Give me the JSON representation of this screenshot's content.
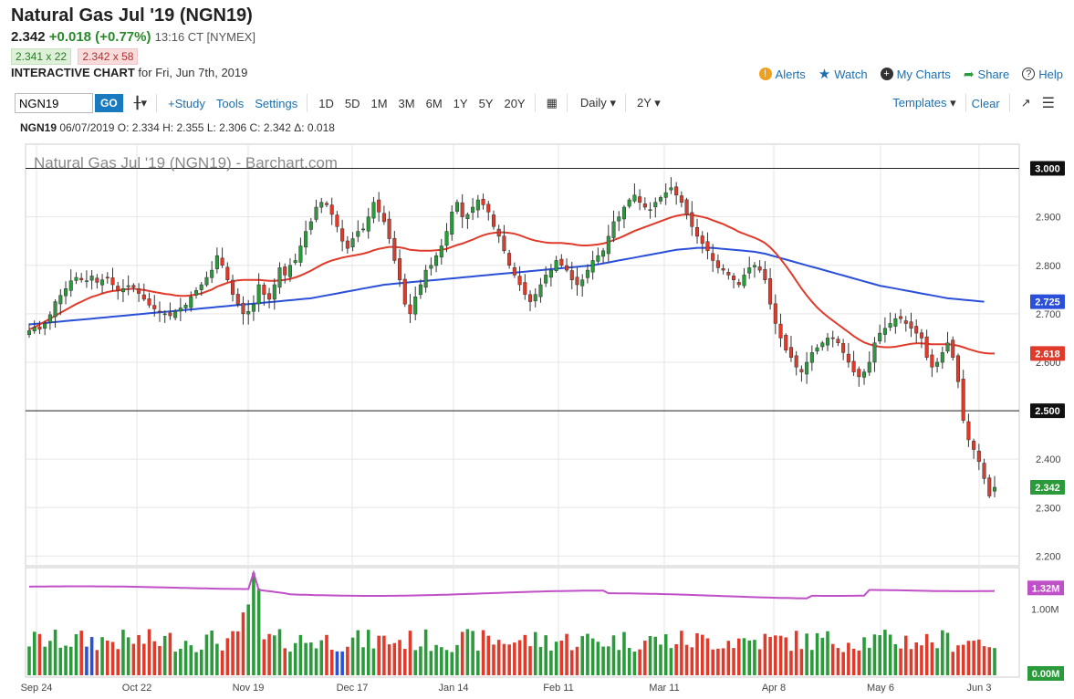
{
  "header": {
    "title": "Natural Gas Jul '19 (NGN19)",
    "last": "2.342",
    "change": "+0.018 (+0.77%)",
    "time": "13:16 CT [NYMEX]",
    "bid": "2.341 x 22",
    "ask": "2.342 x 58",
    "chart_label": "INTERACTIVE CHART",
    "chart_date": "for Fri, Jun 7th, 2019"
  },
  "links": {
    "alerts": "Alerts",
    "watch": "Watch",
    "my_charts": "My Charts",
    "share": "Share",
    "help": "Help"
  },
  "toolbar": {
    "symbol": "NGN19",
    "go": "GO",
    "study": "+Study",
    "tools": "Tools",
    "settings": "Settings",
    "ranges": [
      "1D",
      "5D",
      "1M",
      "3M",
      "6M",
      "1Y",
      "5Y",
      "20Y"
    ],
    "interval": "Daily",
    "period": "2Y",
    "templates": "Templates",
    "clear": "Clear"
  },
  "ohlc": {
    "symbol": "NGN19",
    "text": "06/07/2019 O: 2.334 H: 2.355 L: 2.306 C: 2.342 Δ: 0.018"
  },
  "chart_data": {
    "type": "candlestick",
    "title": "Natural Gas Jul '19 (NGN19) - Barchart.com",
    "x_ticks": [
      "Sep 24",
      "Oct 22",
      "Nov 19",
      "Dec 17",
      "Jan 14",
      "Feb 11",
      "Mar 11",
      "Apr 8",
      "May 6",
      "Jun 3"
    ],
    "y_ticks": [
      "2.200",
      "2.300",
      "2.400",
      "2.500",
      "2.600",
      "2.700",
      "2.800",
      "2.900",
      "3.000"
    ],
    "ylim": [
      2.18,
      3.05
    ],
    "horizontal_lines": [
      3.0,
      2.5
    ],
    "price_labels": [
      {
        "label": "3.000",
        "value": 3.0,
        "color": "#111111"
      },
      {
        "label": "2.725",
        "value": 2.725,
        "color": "#2a4fd8"
      },
      {
        "label": "2.618",
        "value": 2.618,
        "color": "#e03a2a"
      },
      {
        "label": "2.500",
        "value": 2.5,
        "color": "#111111"
      },
      {
        "label": "2.342",
        "value": 2.342,
        "color": "#2a9a3a"
      }
    ],
    "ma_fast_color": "#e03a2a",
    "ma_slow_color": "#2a4fd8",
    "up_color": "#2a9a3a",
    "down_color": "#e03a2a",
    "closes": [
      2.665,
      2.672,
      2.668,
      2.68,
      2.698,
      2.725,
      2.738,
      2.752,
      2.768,
      2.775,
      2.77,
      2.768,
      2.778,
      2.765,
      2.77,
      2.775,
      2.76,
      2.748,
      2.752,
      2.758,
      2.755,
      2.742,
      2.73,
      2.718,
      2.71,
      2.705,
      2.7,
      2.696,
      2.705,
      2.712,
      2.718,
      2.735,
      2.748,
      2.76,
      2.775,
      2.79,
      2.82,
      2.8,
      2.77,
      2.74,
      2.72,
      2.7,
      2.705,
      2.72,
      2.76,
      2.74,
      2.73,
      2.76,
      2.795,
      2.78,
      2.8,
      2.81,
      2.84,
      2.87,
      2.89,
      2.92,
      2.93,
      2.925,
      2.905,
      2.88,
      2.85,
      2.835,
      2.855,
      2.87,
      2.875,
      2.9,
      2.93,
      2.91,
      2.89,
      2.855,
      2.81,
      2.77,
      2.72,
      2.7,
      2.735,
      2.76,
      2.79,
      2.8,
      2.82,
      2.84,
      2.87,
      2.91,
      2.93,
      2.9,
      2.905,
      2.92,
      2.935,
      2.925,
      2.91,
      2.88,
      2.86,
      2.83,
      2.8,
      2.78,
      2.76,
      2.74,
      2.725,
      2.74,
      2.76,
      2.78,
      2.79,
      2.81,
      2.8,
      2.79,
      2.77,
      2.76,
      2.77,
      2.79,
      2.81,
      2.82,
      2.83,
      2.86,
      2.89,
      2.9,
      2.92,
      2.935,
      2.945,
      2.93,
      2.92,
      2.915,
      2.93,
      2.94,
      2.95,
      2.96,
      2.945,
      2.93,
      2.905,
      2.88,
      2.86,
      2.845,
      2.83,
      2.81,
      2.795,
      2.79,
      2.78,
      2.77,
      2.76,
      2.78,
      2.795,
      2.8,
      2.79,
      2.77,
      2.72,
      2.68,
      2.65,
      2.625,
      2.61,
      2.59,
      2.58,
      2.6,
      2.62,
      2.63,
      2.64,
      2.65,
      2.65,
      2.64,
      2.62,
      2.6,
      2.58,
      2.57,
      2.58,
      2.6,
      2.64,
      2.66,
      2.67,
      2.68,
      2.69,
      2.69,
      2.68,
      2.67,
      2.66,
      2.65,
      2.61,
      2.59,
      2.6,
      2.62,
      2.64,
      2.61,
      2.56,
      2.48,
      2.44,
      2.42,
      2.395,
      2.36,
      2.324,
      2.342
    ],
    "ma_fast": [
      2.668,
      2.672,
      2.678,
      2.684,
      2.69,
      2.696,
      2.702,
      2.708,
      2.714,
      2.72,
      2.725,
      2.73,
      2.735,
      2.738,
      2.742,
      2.745,
      2.747,
      2.748,
      2.75,
      2.751,
      2.752,
      2.75,
      2.749,
      2.747,
      2.745,
      2.743,
      2.741,
      2.74,
      2.738,
      2.737,
      2.737,
      2.738,
      2.74,
      2.742,
      2.746,
      2.75,
      2.756,
      2.76,
      2.764,
      2.767,
      2.769,
      2.77,
      2.77,
      2.77,
      2.77,
      2.769,
      2.768,
      2.768,
      2.769,
      2.77,
      2.772,
      2.775,
      2.779,
      2.784,
      2.789,
      2.795,
      2.801,
      2.806,
      2.81,
      2.813,
      2.816,
      2.818,
      2.82,
      2.822,
      2.824,
      2.827,
      2.831,
      2.834,
      2.836,
      2.838,
      2.838,
      2.837,
      2.835,
      2.832,
      2.831,
      2.83,
      2.83,
      2.83,
      2.831,
      2.832,
      2.834,
      2.838,
      2.842,
      2.845,
      2.849,
      2.853,
      2.858,
      2.862,
      2.865,
      2.867,
      2.868,
      2.868,
      2.867,
      2.865,
      2.862,
      2.858,
      2.854,
      2.851,
      2.849,
      2.847,
      2.846,
      2.846,
      2.846,
      2.845,
      2.844,
      2.842,
      2.841,
      2.841,
      2.842,
      2.843,
      2.845,
      2.848,
      2.852,
      2.856,
      2.861,
      2.866,
      2.871,
      2.875,
      2.879,
      2.883,
      2.887,
      2.891,
      2.895,
      2.899,
      2.902,
      2.904,
      2.905,
      2.904,
      2.902,
      2.9,
      2.897,
      2.893,
      2.889,
      2.885,
      2.88,
      2.875,
      2.869,
      2.865,
      2.861,
      2.857,
      2.852,
      2.846,
      2.837,
      2.826,
      2.813,
      2.799,
      2.784,
      2.768,
      2.752,
      2.738,
      2.725,
      2.713,
      2.703,
      2.694,
      2.686,
      2.678,
      2.67,
      2.662,
      2.654,
      2.647,
      2.641,
      2.637,
      2.634,
      2.632,
      2.631,
      2.631,
      2.632,
      2.634,
      2.636,
      2.638,
      2.639,
      2.639,
      2.638,
      2.637,
      2.637,
      2.637,
      2.637,
      2.636,
      2.634,
      2.631,
      2.627,
      2.624,
      2.621,
      2.619,
      2.618,
      2.618
    ],
    "ma_slow": [
      2.678,
      2.679,
      2.68,
      2.681,
      2.682,
      2.683,
      2.684,
      2.685,
      2.686,
      2.687,
      2.688,
      2.689,
      2.69,
      2.691,
      2.692,
      2.693,
      2.694,
      2.695,
      2.696,
      2.697,
      2.698,
      2.699,
      2.7,
      2.701,
      2.702,
      2.703,
      2.704,
      2.705,
      2.706,
      2.707,
      2.708,
      2.709,
      2.71,
      2.711,
      2.712,
      2.713,
      2.714,
      2.715,
      2.716,
      2.717,
      2.718,
      2.719,
      2.72,
      2.721,
      2.722,
      2.723,
      2.724,
      2.725,
      2.726,
      2.727,
      2.728,
      2.729,
      2.73,
      2.731,
      2.732,
      2.734,
      2.736,
      2.738,
      2.74,
      2.742,
      2.744,
      2.746,
      2.748,
      2.75,
      2.752,
      2.754,
      2.756,
      2.758,
      2.76,
      2.761,
      2.762,
      2.763,
      2.764,
      2.765,
      2.766,
      2.767,
      2.768,
      2.769,
      2.77,
      2.771,
      2.772,
      2.773,
      2.774,
      2.775,
      2.776,
      2.777,
      2.778,
      2.779,
      2.78,
      2.781,
      2.782,
      2.783,
      2.784,
      2.785,
      2.786,
      2.787,
      2.788,
      2.789,
      2.79,
      2.791,
      2.792,
      2.793,
      2.794,
      2.795,
      2.796,
      2.797,
      2.798,
      2.799,
      2.8,
      2.802,
      2.804,
      2.806,
      2.808,
      2.81,
      2.812,
      2.814,
      2.816,
      2.818,
      2.82,
      2.822,
      2.824,
      2.826,
      2.828,
      2.83,
      2.832,
      2.833,
      2.834,
      2.835,
      2.836,
      2.836,
      2.836,
      2.836,
      2.835,
      2.834,
      2.833,
      2.832,
      2.831,
      2.83,
      2.829,
      2.828,
      2.826,
      2.824,
      2.821,
      2.818,
      2.815,
      2.812,
      2.809,
      2.806,
      2.803,
      2.8,
      2.797,
      2.794,
      2.791,
      2.788,
      2.785,
      2.782,
      2.779,
      2.776,
      2.773,
      2.77,
      2.767,
      2.764,
      2.761,
      2.758,
      2.756,
      2.754,
      2.752,
      2.75,
      2.748,
      2.746,
      2.744,
      2.742,
      2.74,
      2.738,
      2.736,
      2.734,
      2.732,
      2.731,
      2.73,
      2.729,
      2.728,
      2.727,
      2.726,
      2.725
    ],
    "volume_axis": [
      "1.00M",
      "0.00M"
    ],
    "volume_label": "1.32M",
    "volume_color_up": "#2a9a3a",
    "volume_color_down": "#e03a2a",
    "volume_color_blue": "#2a4fd8",
    "oi_color": "#c050c8"
  }
}
